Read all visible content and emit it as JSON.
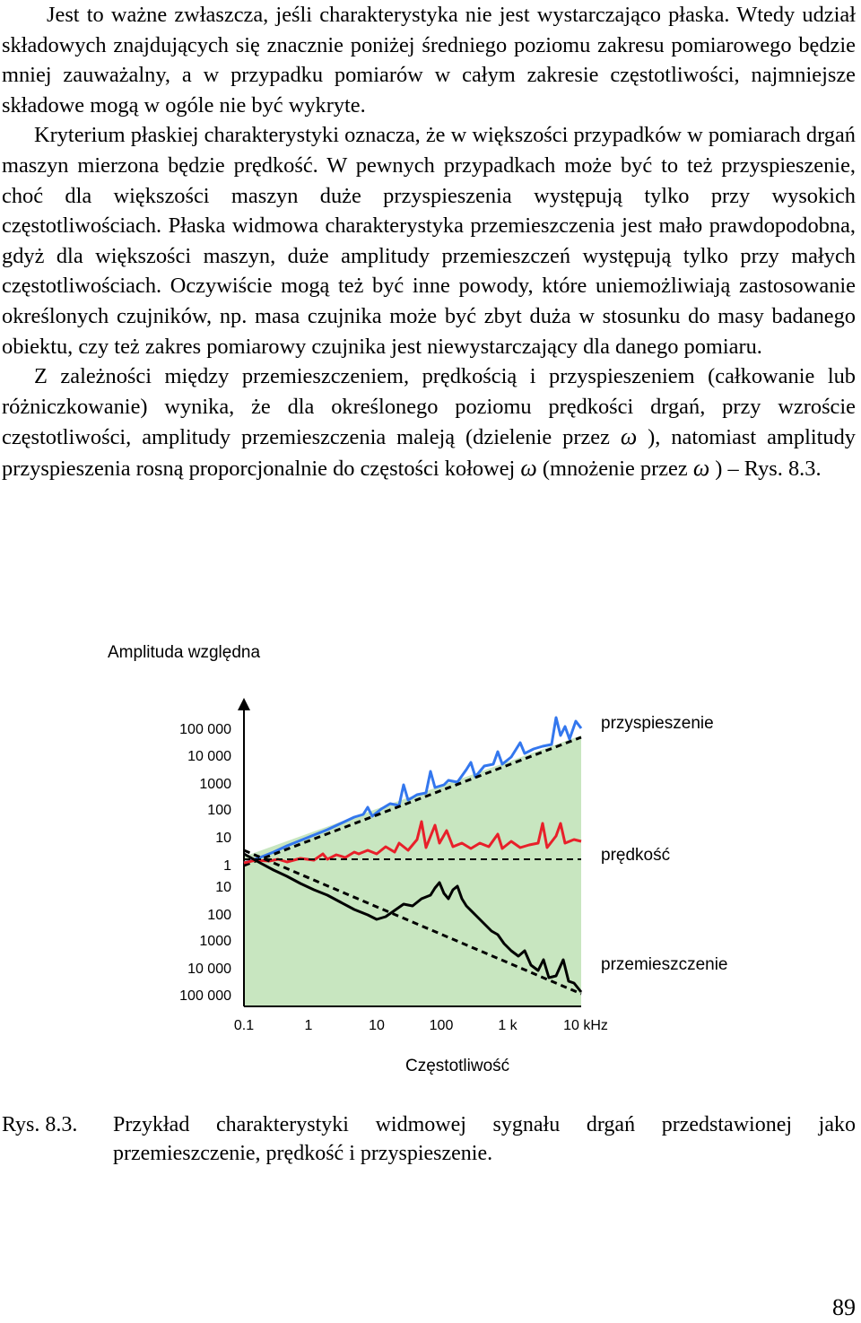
{
  "body": {
    "p1": "Jest to ważne zwłaszcza, jeśli charakterystyka nie jest wystarczająco płaska. Wtedy udział składowych znajdujących się znacznie poniżej średniego poziomu zakresu pomiarowego będzie mniej zauważalny, a w przypadku pomiarów w całym zakresie częstotliwości, najmniejsze składowe mogą w ogóle nie być wykryte.",
    "p2": "Kryterium płaskiej charakterystyki oznacza, że w większości przypadków w pomiarach drgań maszyn mierzona będzie prędkość. W pewnych przypadkach może być to też przyspieszenie, choć dla większości maszyn duże przyspieszenia występują tylko przy wysokich częstotliwościach. Płaska widmowa charakterystyka przemieszczenia jest mało prawdopodobna, gdyż dla większości maszyn, duże amplitudy przemieszczeń występują tylko przy małych częstotliwościach. Oczywiście mogą też być inne powody, które uniemożliwiają zastosowanie określonych czujników, np. masa czujnika może być zbyt duża w stosunku do masy badanego obiektu, czy też zakres pomiarowy czujnika jest niewystarczający dla danego pomiaru.",
    "p3_a": "Z zależności między przemieszczeniem, prędkością i przyspieszeniem (całkowanie lub różniczkowanie) wynika, że dla określonego poziomu prędkości drgań, przy wzroście częstotliwości, amplitudy przemieszczenia maleją (dzielenie przez ",
    "omega": "ω",
    "p3_b": " ), natomiast amplitudy przyspieszenia rosną proporcjonalnie do częstości kołowej ",
    "p3_c": " (mnożenie przez ",
    "p3_d": " ) – Rys. 8.3."
  },
  "figure": {
    "y_axis_title": "Amplituda względna",
    "x_axis_title": "Częstotliwość",
    "series_labels": {
      "acceleration": "przyspieszenie",
      "velocity": "prędkość",
      "displacement": "przemieszczenie"
    },
    "y_ticks": [
      "100 000",
      "10 000",
      "1000",
      "100",
      "10",
      "1",
      "10",
      "100",
      "1000",
      "10 000",
      "100 000"
    ],
    "x_ticks": [
      "0.1",
      "1",
      "10",
      "100",
      "1 k",
      "10 kHz"
    ],
    "colors": {
      "fill": "#c8e6c0",
      "acceleration": "#3377ee",
      "velocity": "#e8202a",
      "displacement": "#000000"
    }
  },
  "caption": {
    "number": "Rys. 8.3.",
    "text": "Przykład charakterystyki widmowej sygnału drgań przedstawionej jako przemieszczenie, prędkość i przyspieszenie."
  },
  "page_number": "89"
}
